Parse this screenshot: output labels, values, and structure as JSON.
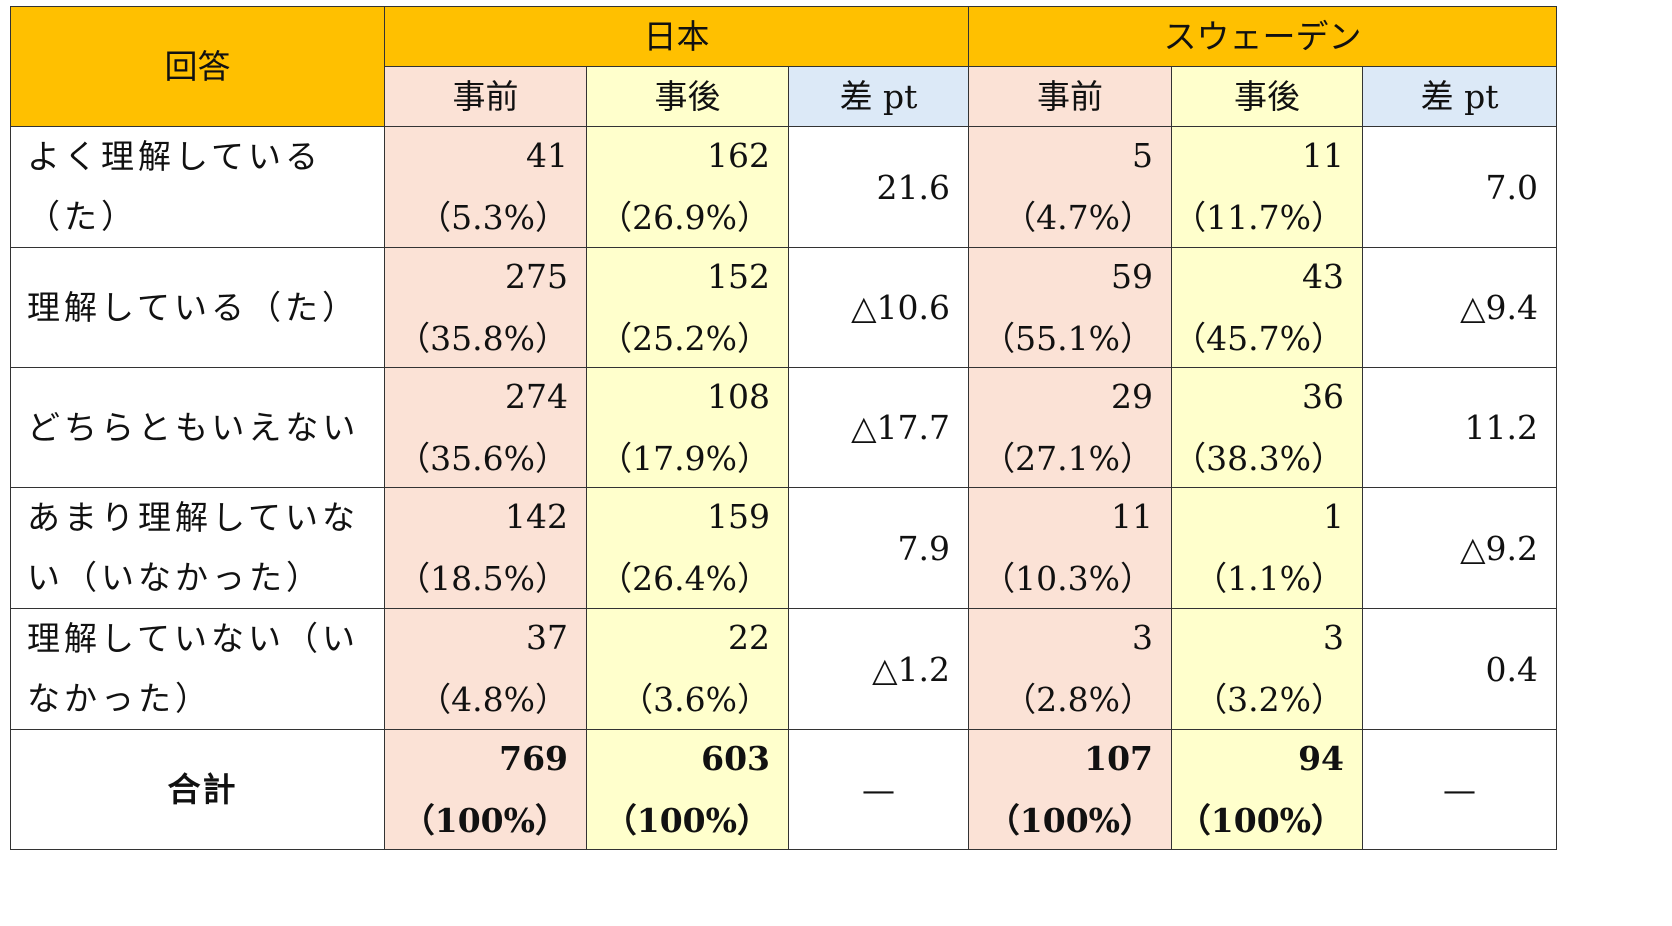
{
  "headers": {
    "answer": "回答",
    "country_japan": "日本",
    "country_sweden": "スウェーデン",
    "before": "事前",
    "after": "事後",
    "diff": "差 pt"
  },
  "rows": [
    {
      "label": "よく理解している（た）",
      "jp_before_n": "41",
      "jp_before_p": "（5.3%）",
      "jp_after_n": "162",
      "jp_after_p": "（26.9%）",
      "jp_diff": "21.6",
      "se_before_n": "5",
      "se_before_p": "（4.7%）",
      "se_after_n": "11",
      "se_after_p": "（11.7%）",
      "se_diff": "7.0"
    },
    {
      "label": "理解している（た）",
      "jp_before_n": "275",
      "jp_before_p": "（35.8%）",
      "jp_after_n": "152",
      "jp_after_p": "（25.2%）",
      "jp_diff": "△10.6",
      "se_before_n": "59",
      "se_before_p": "（55.1%）",
      "se_after_n": "43",
      "se_after_p": "（45.7%）",
      "se_diff": "△9.4"
    },
    {
      "label": "どちらともいえない",
      "jp_before_n": "274",
      "jp_before_p": "（35.6%）",
      "jp_after_n": "108",
      "jp_after_p": "（17.9%）",
      "jp_diff": "△17.7",
      "se_before_n": "29",
      "se_before_p": "（27.1%）",
      "se_after_n": "36",
      "se_after_p": "（38.3%）",
      "se_diff": "11.2"
    },
    {
      "label": "あまり理解していない（いなかった）",
      "jp_before_n": "142",
      "jp_before_p": "（18.5%）",
      "jp_after_n": "159",
      "jp_after_p": "（26.4%）",
      "jp_diff": "7.9",
      "se_before_n": "11",
      "se_before_p": "（10.3%）",
      "se_after_n": "1",
      "se_after_p": "（1.1%）",
      "se_diff": "△9.2"
    },
    {
      "label": "理解していない（いなかった）",
      "jp_before_n": "37",
      "jp_before_p": "（4.8%）",
      "jp_after_n": "22",
      "jp_after_p": "（3.6%）",
      "jp_diff": "△1.2",
      "se_before_n": "3",
      "se_before_p": "（2.8%）",
      "se_after_n": "3",
      "se_after_p": "（3.2%）",
      "se_diff": "0.4"
    }
  ],
  "total": {
    "label": "合計",
    "jp_before_n": "769",
    "jp_before_p": "（100%）",
    "jp_after_n": "603",
    "jp_after_p": "（100%）",
    "jp_diff": "—",
    "se_before_n": "107",
    "se_before_p": "（100%）",
    "se_after_n": "94",
    "se_after_p": "（100%）",
    "se_diff": "—"
  },
  "colors": {
    "header": "#ffc000",
    "before": "#fbe2d6",
    "after": "#ffffcc",
    "diff": "#dce9f7"
  }
}
